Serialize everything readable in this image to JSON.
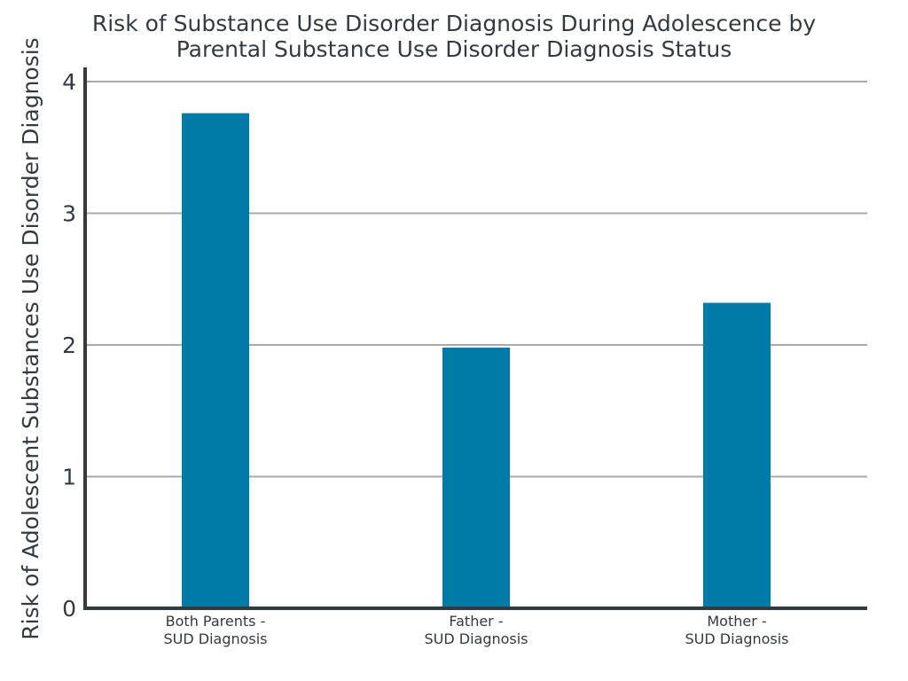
{
  "chart_data": {
    "type": "bar",
    "title_lines": [
      "Risk of Substance Use Disorder Diagnosis During Adolescence by",
      "Parental Substance Use Disorder Diagnosis Status"
    ],
    "xlabel": "",
    "ylabel": "Risk of Adolescent Substances Use Disorder Diagnosis",
    "ylim": [
      0,
      4
    ],
    "yticks": [
      0,
      1,
      2,
      3,
      4
    ],
    "grid": true,
    "categories": [
      [
        "Both Parents -",
        "SUD Diagnosis"
      ],
      [
        "Father -",
        "SUD Diagnosis"
      ],
      [
        "Mother -",
        "SUD Diagnosis"
      ]
    ],
    "values": [
      3.76,
      1.98,
      2.32
    ],
    "colors": {
      "bar": "#007ba7",
      "grid": "#a8a8a8",
      "axis": "#333a40",
      "text": "#333a40"
    }
  }
}
